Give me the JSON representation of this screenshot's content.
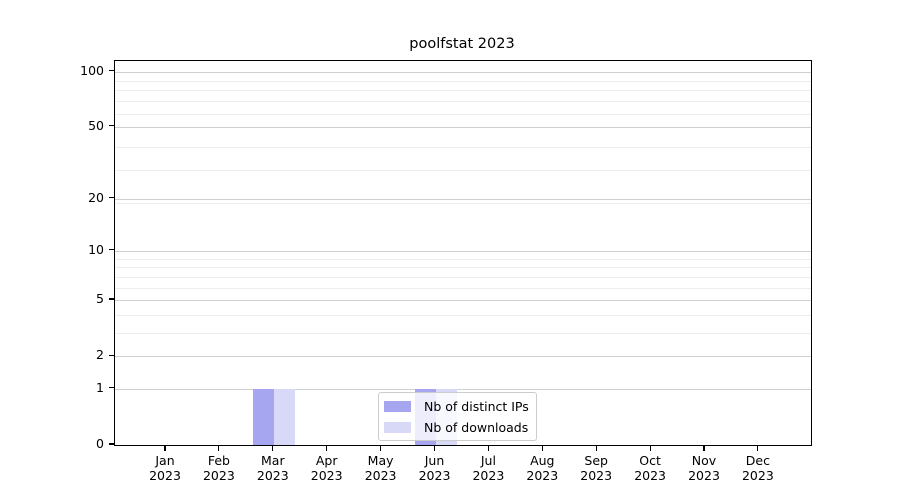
{
  "title": "poolfstat 2023",
  "chart_data": {
    "type": "bar",
    "title": "poolfstat 2023",
    "x_months": [
      "Jan",
      "Feb",
      "Mar",
      "Apr",
      "May",
      "Jun",
      "Jul",
      "Aug",
      "Sep",
      "Oct",
      "Nov",
      "Dec"
    ],
    "x_year": "2023",
    "series": [
      {
        "name": "Nb of distinct IPs",
        "color": "#a6a6f0",
        "values": [
          0,
          0,
          1,
          0,
          0,
          1,
          0,
          0,
          0,
          0,
          0,
          0
        ]
      },
      {
        "name": "Nb of downloads",
        "color": "#d8d8f7",
        "values": [
          0,
          0,
          1,
          0,
          0,
          1,
          0,
          0,
          0,
          0,
          0,
          0
        ]
      }
    ],
    "y_axis": {
      "scale": "log10(1+v)",
      "ticks": [
        0,
        1,
        2,
        5,
        10,
        20,
        50,
        100
      ],
      "minor_gridlines": [
        3,
        4,
        6,
        7,
        8,
        9,
        19,
        29,
        39,
        59,
        69,
        79,
        89,
        99
      ],
      "min": 0,
      "max": 114
    },
    "grid": "horizontal-only",
    "legend_position": "lower-center"
  },
  "colors": {
    "major_grid": "#d0d0d0",
    "minor_grid": "#ededed",
    "spine": "#000000",
    "legend_border": "#cccccc"
  }
}
